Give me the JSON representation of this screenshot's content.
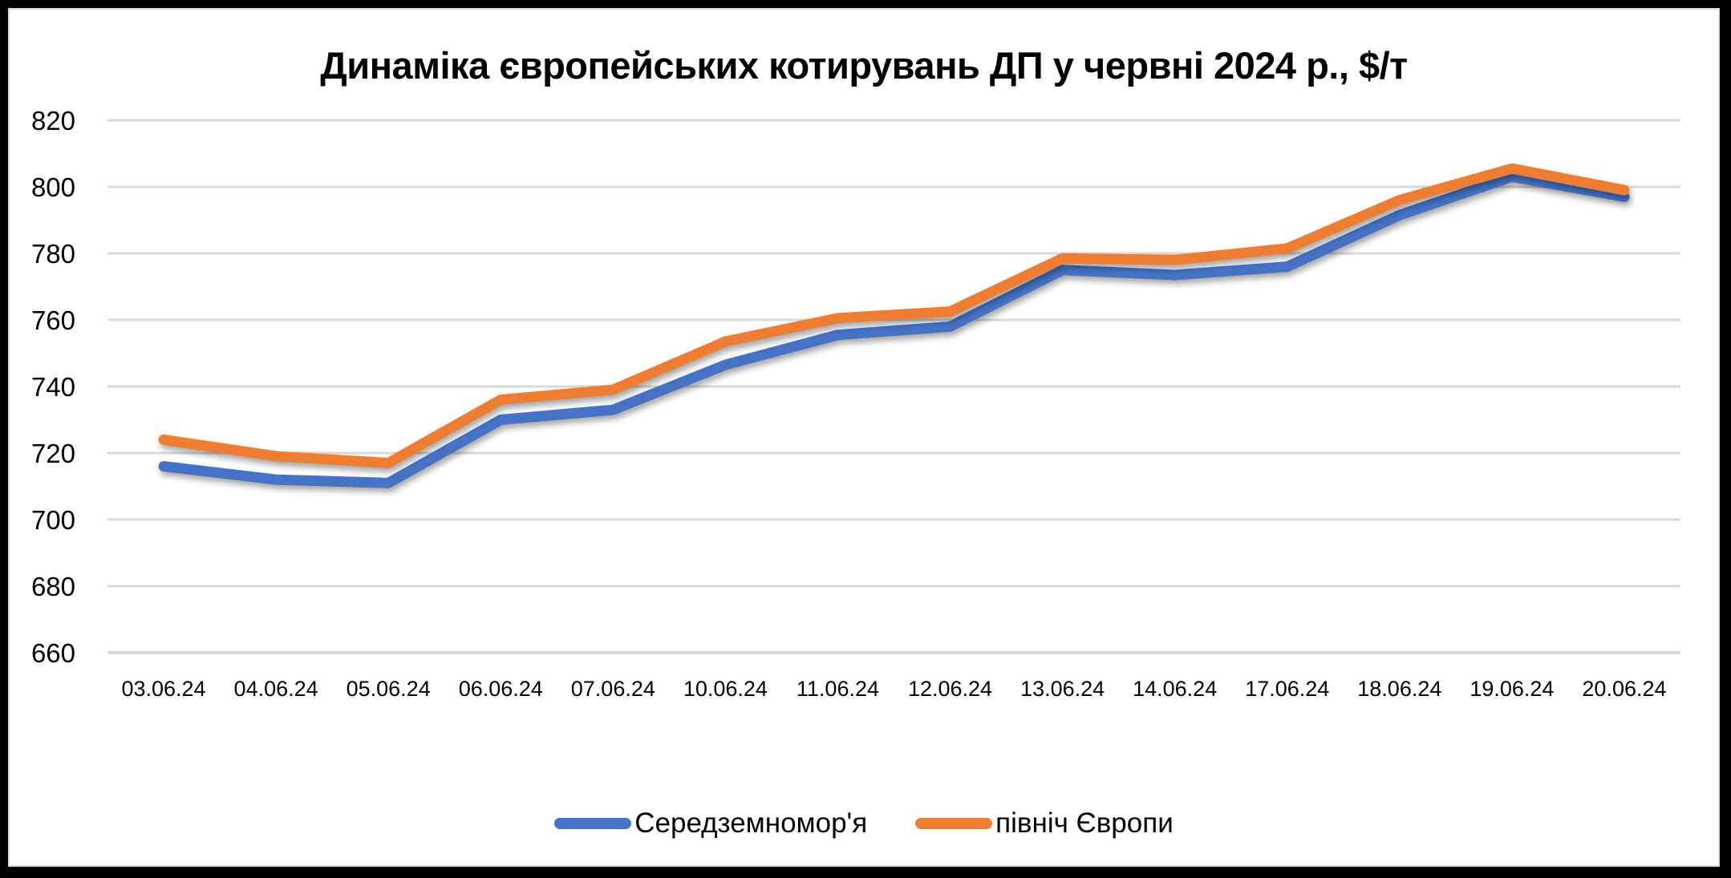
{
  "chart_data": {
    "type": "line",
    "title": "Динаміка європейських котирувань ДП у червні 2024 р., $/т",
    "xlabel": "",
    "ylabel": "",
    "ylim": [
      660,
      820
    ],
    "yticks": [
      820,
      800,
      780,
      760,
      740,
      720,
      700,
      680,
      660
    ],
    "grid": true,
    "legend_position": "bottom",
    "categories": [
      "03.06.24",
      "04.06.24",
      "05.06.24",
      "06.06.24",
      "07.06.24",
      "10.06.24",
      "11.06.24",
      "12.06.24",
      "13.06.24",
      "14.06.24",
      "17.06.24",
      "18.06.24",
      "19.06.24",
      "20.06.24"
    ],
    "series": [
      {
        "name": "Середземномор'я",
        "color": "#4472C4",
        "values": [
          716,
          712,
          711,
          730,
          733,
          746.5,
          755.5,
          758,
          775,
          773.5,
          776,
          791.5,
          803,
          797
        ]
      },
      {
        "name": "північ Європи",
        "color": "#ED7D31",
        "values": [
          724,
          719,
          717,
          736,
          739,
          753.5,
          760.5,
          762.5,
          778.5,
          778,
          781.5,
          796,
          805.5,
          799
        ]
      }
    ]
  },
  "legend": {
    "items": [
      {
        "label": "Середземномор'я",
        "color": "#4472C4"
      },
      {
        "label": "північ Європи",
        "color": "#ED7D31"
      }
    ]
  }
}
